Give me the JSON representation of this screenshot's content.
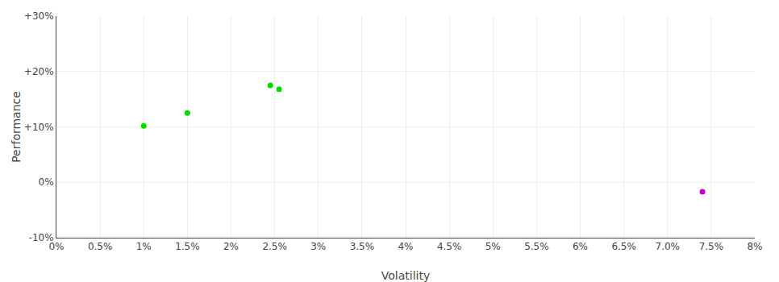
{
  "chart_data": {
    "type": "scatter",
    "xlabel": "Volatility",
    "ylabel": "Performance",
    "x": [
      0.01,
      0.015,
      0.0245,
      0.0255,
      0.074
    ],
    "values": [
      0.102,
      0.125,
      0.175,
      0.168,
      -0.017
    ],
    "colors": [
      "#00dd00",
      "#00dd00",
      "#00dd00",
      "#00dd00",
      "#cc00cc"
    ],
    "xlim": [
      0.0,
      0.08
    ],
    "ylim": [
      -0.1,
      0.3
    ],
    "xticks": [
      {
        "value": 0.0,
        "label": "0%"
      },
      {
        "value": 0.005,
        "label": "0.5%"
      },
      {
        "value": 0.01,
        "label": "1%"
      },
      {
        "value": 0.015,
        "label": "1.5%"
      },
      {
        "value": 0.02,
        "label": "2%"
      },
      {
        "value": 0.025,
        "label": "2.5%"
      },
      {
        "value": 0.03,
        "label": "3%"
      },
      {
        "value": 0.035,
        "label": "3.5%"
      },
      {
        "value": 0.04,
        "label": "4%"
      },
      {
        "value": 0.045,
        "label": "4.5%"
      },
      {
        "value": 0.05,
        "label": "5%"
      },
      {
        "value": 0.055,
        "label": "5.5%"
      },
      {
        "value": 0.06,
        "label": "6%"
      },
      {
        "value": 0.065,
        "label": "6.5%"
      },
      {
        "value": 0.07,
        "label": "7.0%"
      },
      {
        "value": 0.075,
        "label": "7.5%"
      },
      {
        "value": 0.08,
        "label": "8%"
      }
    ],
    "yticks": [
      {
        "value": -0.1,
        "label": "-10%"
      },
      {
        "value": 0.0,
        "label": "0%"
      },
      {
        "value": 0.1,
        "label": "+10%"
      },
      {
        "value": 0.2,
        "label": "+20%"
      },
      {
        "value": 0.3,
        "label": "+30%"
      }
    ],
    "grid": true
  }
}
